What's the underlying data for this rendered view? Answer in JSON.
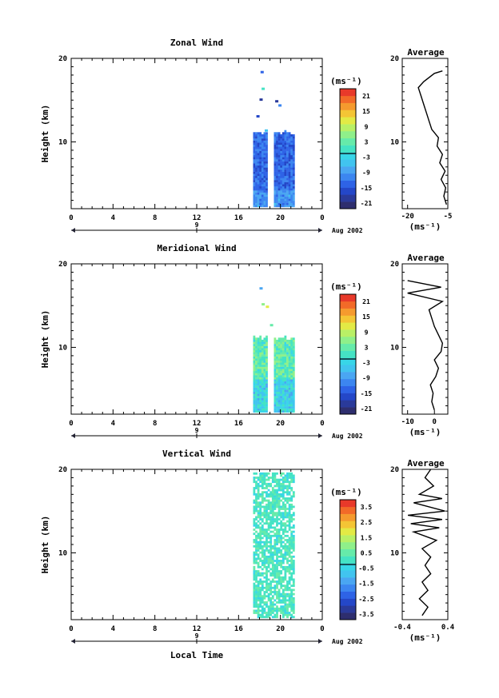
{
  "panels": [
    {
      "title": "Zonal Wind",
      "ylabel": "Height (km)",
      "y_ticks": [
        "20",
        "10"
      ],
      "x_ticks": [
        "0",
        "4",
        "8",
        "12",
        "16",
        "20",
        "0"
      ],
      "day_label": "9",
      "date_label": "Aug 2002",
      "unit_label": "(ms⁻¹)",
      "colorbar_labels": [
        "21",
        "15",
        "9",
        "3",
        "-3",
        "-9",
        "-15",
        "-21"
      ],
      "avg_title": "Average",
      "avg_y_ticks": [
        "20",
        "10"
      ],
      "avg_x_ticks": [
        "-20",
        "-5"
      ],
      "avg_unit": "(ms⁻¹)"
    },
    {
      "title": "Meridional Wind",
      "ylabel": "Height (km)",
      "y_ticks": [
        "20",
        "10"
      ],
      "x_ticks": [
        "0",
        "4",
        "8",
        "12",
        "16",
        "20",
        "0"
      ],
      "day_label": "9",
      "date_label": "Aug 2002",
      "unit_label": "(ms⁻¹)",
      "colorbar_labels": [
        "21",
        "15",
        "9",
        "3",
        "-3",
        "-9",
        "-15",
        "-21"
      ],
      "avg_title": "Average",
      "avg_y_ticks": [
        "20",
        "10"
      ],
      "avg_x_ticks": [
        "-10",
        "0"
      ],
      "avg_unit": "(ms⁻¹)"
    },
    {
      "title": "Vertical Wind",
      "ylabel": "Height (km)",
      "y_ticks": [
        "20",
        "10"
      ],
      "x_ticks": [
        "0",
        "4",
        "8",
        "12",
        "16",
        "20",
        "0"
      ],
      "day_label": "9",
      "date_label": "Aug 2002",
      "unit_label": "(ms⁻¹)",
      "colorbar_labels": [
        "3.5",
        "2.5",
        "1.5",
        "0.5",
        "-0.5",
        "-1.5",
        "-2.5",
        "-3.5"
      ],
      "avg_title": "Average",
      "avg_y_ticks": [
        "20",
        "10"
      ],
      "avg_x_ticks": [
        "-0.4",
        "0.4"
      ],
      "avg_unit": "(ms⁻¹)"
    }
  ],
  "xlabel_bottom": "Local Time",
  "colors": {
    "colormap": [
      "#2e2e6e",
      "#2a3a9a",
      "#2447c8",
      "#2e63e6",
      "#3c86f0",
      "#4aa6f2",
      "#41c4ef",
      "#38d6e8",
      "#45e3c4",
      "#66ebaa",
      "#8ff08a",
      "#b9f066",
      "#e3ea45",
      "#f4c535",
      "#f59a2e",
      "#f26a28",
      "#e8392a"
    ]
  },
  "chart_data": [
    {
      "type": "heatmap",
      "title": "Zonal Wind",
      "ylabel": "Height (km)",
      "xlim": [
        0,
        24
      ],
      "ylim": [
        2,
        20
      ],
      "data_window_local_time": [
        18,
        21
      ],
      "colorbar_range": [
        -21,
        21
      ],
      "dominant_values": "-21 to -3 (blue) from ~2 to 11 km",
      "profile": {
        "title": "Average",
        "xlim": [
          -22,
          -5
        ],
        "points": [
          [
            -5.5,
            2.5
          ],
          [
            -6.5,
            3.5
          ],
          [
            -5.8,
            4.5
          ],
          [
            -7.5,
            5.5
          ],
          [
            -6,
            6.5
          ],
          [
            -8,
            7.5
          ],
          [
            -7,
            8.5
          ],
          [
            -9,
            9.5
          ],
          [
            -8.5,
            10.5
          ],
          [
            -11,
            11.5
          ],
          [
            -12,
            12.5
          ],
          [
            -13,
            13.5
          ],
          [
            -14,
            14.5
          ],
          [
            -15,
            15.5
          ],
          [
            -16,
            16.5
          ],
          [
            -14,
            17.2
          ],
          [
            -10,
            18.2
          ],
          [
            -7,
            18.5
          ]
        ]
      }
    },
    {
      "type": "heatmap",
      "title": "Meridional Wind",
      "ylabel": "Height (km)",
      "xlim": [
        0,
        24
      ],
      "ylim": [
        2,
        20
      ],
      "data_window_local_time": [
        18,
        21
      ],
      "colorbar_range": [
        -21,
        21
      ],
      "dominant_values": "-9 to 3 (cyan to green) from ~2 to 11 km",
      "profile": {
        "title": "Average",
        "xlim": [
          -12,
          5
        ],
        "points": [
          [
            0,
            2.5
          ],
          [
            -1,
            3.5
          ],
          [
            -0.5,
            4.5
          ],
          [
            -1.5,
            5.5
          ],
          [
            0.5,
            6.5
          ],
          [
            1.5,
            7.5
          ],
          [
            0,
            8.5
          ],
          [
            2.5,
            9.5
          ],
          [
            3,
            10.5
          ],
          [
            1.5,
            11.5
          ],
          [
            0,
            12.5
          ],
          [
            -1,
            13.5
          ],
          [
            -2,
            14.5
          ],
          [
            3,
            15.5
          ],
          [
            -10,
            16.5
          ],
          [
            2.5,
            17.2
          ],
          [
            -10,
            18
          ]
        ]
      }
    },
    {
      "type": "heatmap",
      "title": "Vertical Wind",
      "ylabel": "Height (km)",
      "xlabel": "Local Time",
      "xlim": [
        0,
        24
      ],
      "ylim": [
        2,
        20
      ],
      "data_window_local_time": [
        18,
        21
      ],
      "colorbar_range": [
        -3.5,
        3.5
      ],
      "dominant_values": "-0.5 to 0.5 (cyan/green) from ~2 to 20 km",
      "profile": {
        "title": "Average",
        "xlim": [
          -0.4,
          0.4
        ],
        "points": [
          [
            -0.05,
            2.5
          ],
          [
            0.05,
            3.5
          ],
          [
            -0.1,
            4.5
          ],
          [
            0.05,
            5.5
          ],
          [
            -0.05,
            6.5
          ],
          [
            0.1,
            7.5
          ],
          [
            0,
            8.5
          ],
          [
            0.1,
            9.5
          ],
          [
            -0.05,
            10.5
          ],
          [
            0.2,
            11.5
          ],
          [
            -0.2,
            12.5
          ],
          [
            0.25,
            13
          ],
          [
            -0.25,
            13.5
          ],
          [
            0.3,
            14
          ],
          [
            -0.3,
            14.5
          ],
          [
            0.35,
            15
          ],
          [
            -0.2,
            16
          ],
          [
            0.3,
            16.5
          ],
          [
            -0.1,
            17
          ],
          [
            0.15,
            18
          ],
          [
            0,
            19
          ],
          [
            0.1,
            20
          ]
        ]
      }
    }
  ]
}
